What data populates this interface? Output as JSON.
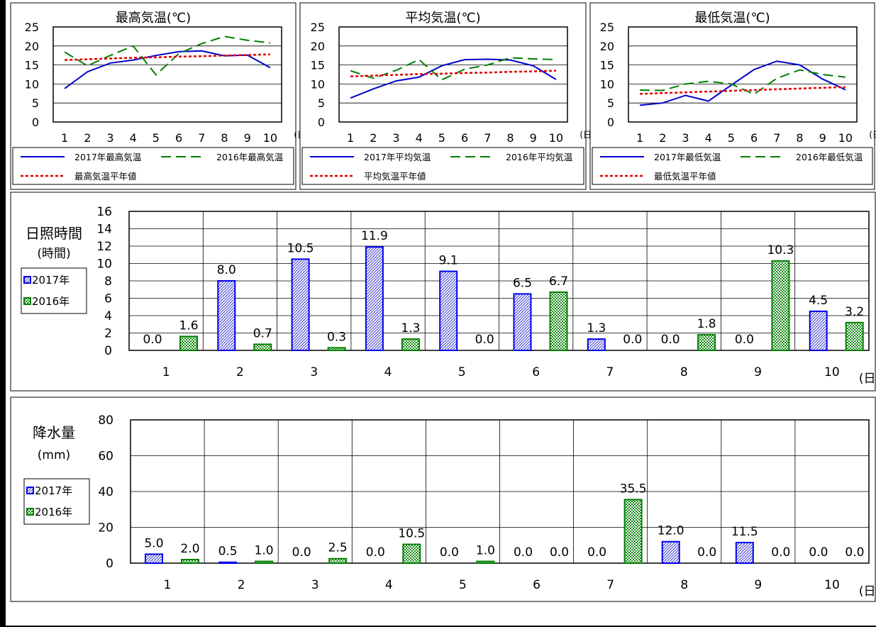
{
  "temperature_panels": [
    {
      "title": "最高気温(℃)",
      "chart_data": {
        "type": "line",
        "title": "最高気温(℃)",
        "x": [
          1,
          2,
          3,
          4,
          5,
          6,
          7,
          8,
          9,
          10
        ],
        "x_unit": "(日)",
        "ylim": [
          0,
          25
        ],
        "yticks": [
          0,
          5,
          10,
          15,
          20,
          25
        ],
        "series": [
          {
            "name": "2017年最高気温",
            "values": [
              8.8,
              13.2,
              15.5,
              16.3,
              17.5,
              18.5,
              18.7,
              17.4,
              17.6,
              14.3
            ],
            "color": "#0000cc",
            "style": "solid"
          },
          {
            "name": "2016年最高気温",
            "values": [
              18.4,
              14.8,
              17.5,
              20.0,
              12.4,
              18.0,
              20.6,
              22.5,
              21.5,
              20.8
            ],
            "color": "#008000",
            "style": "dashed"
          },
          {
            "name": "最高気温平年値",
            "values": [
              16.3,
              16.5,
              16.7,
              16.9,
              17.0,
              17.2,
              17.3,
              17.5,
              17.6,
              17.8
            ],
            "color": "#e00000",
            "style": "dotted"
          }
        ]
      }
    },
    {
      "title": "平均気温(℃)",
      "chart_data": {
        "type": "line",
        "title": "平均気温(℃)",
        "x": [
          1,
          2,
          3,
          4,
          5,
          6,
          7,
          8,
          9,
          10
        ],
        "x_unit": "(日)",
        "ylim": [
          0,
          25
        ],
        "yticks": [
          0,
          5,
          10,
          15,
          20,
          25
        ],
        "series": [
          {
            "name": "2017年平均気温",
            "values": [
              6.3,
              8.7,
              10.8,
              11.8,
              14.8,
              16.4,
              16.5,
              16.3,
              14.8,
              11.2
            ],
            "color": "#0000cc",
            "style": "solid"
          },
          {
            "name": "2016年平均気温",
            "values": [
              13.5,
              11.5,
              13.6,
              16.4,
              11.1,
              13.9,
              15.0,
              16.9,
              16.6,
              16.4
            ],
            "color": "#008000",
            "style": "dashed"
          },
          {
            "name": "平均気温平年値",
            "values": [
              12.0,
              12.2,
              12.4,
              12.6,
              12.7,
              12.9,
              13.0,
              13.2,
              13.3,
              13.5
            ],
            "color": "#e00000",
            "style": "dotted"
          }
        ]
      }
    },
    {
      "title": "最低気温(℃)",
      "chart_data": {
        "type": "line",
        "title": "最低気温(℃)",
        "x": [
          1,
          2,
          3,
          4,
          5,
          6,
          7,
          8,
          9,
          10
        ],
        "x_unit": "(日)",
        "ylim": [
          0,
          25
        ],
        "yticks": [
          0,
          5,
          10,
          15,
          20,
          25
        ],
        "series": [
          {
            "name": "2017年最低気温",
            "values": [
              4.4,
              5.0,
              7.0,
              5.5,
              9.7,
              13.8,
              16.0,
              15.0,
              11.3,
              8.5
            ],
            "color": "#0000cc",
            "style": "solid"
          },
          {
            "name": "2016年最低気温",
            "values": [
              8.4,
              8.3,
              10.0,
              10.7,
              10.0,
              7.3,
              11.5,
              13.7,
              12.5,
              11.8
            ],
            "color": "#008000",
            "style": "dashed"
          },
          {
            "name": "最低気温平年値",
            "values": [
              7.4,
              7.6,
              7.8,
              8.0,
              8.2,
              8.4,
              8.6,
              8.8,
              9.0,
              9.2
            ],
            "color": "#e00000",
            "style": "dotted"
          }
        ]
      }
    }
  ],
  "sunshine": {
    "label_line1": "日照時間",
    "label_line2": "(時間)",
    "chart_data": {
      "type": "bar",
      "categories": [
        "1",
        "2",
        "3",
        "4",
        "5",
        "6",
        "7",
        "8",
        "9",
        "10"
      ],
      "x_unit": "(日)",
      "ylim": [
        0,
        16
      ],
      "yticks": [
        0,
        2,
        4,
        6,
        8,
        10,
        12,
        14,
        16
      ],
      "series": [
        {
          "name": "2017年",
          "values": [
            0.0,
            8.0,
            10.5,
            11.9,
            9.1,
            6.5,
            1.3,
            0.0,
            0.0,
            4.5
          ],
          "labels": [
            "0.0",
            "8.0",
            "10.5",
            "11.9",
            "9.1",
            "6.5",
            "1.3",
            "0.0",
            "0.0",
            "4.5"
          ],
          "color": "#0000ee"
        },
        {
          "name": "2016年",
          "values": [
            1.6,
            0.7,
            0.3,
            1.3,
            0.0,
            6.7,
            0.0,
            1.8,
            10.3,
            3.2
          ],
          "labels": [
            "1.6",
            "0.7",
            "0.3",
            "1.3",
            "0.0",
            "6.7",
            "0.0",
            "1.8",
            "10.3",
            "3.2"
          ],
          "color": "#008000"
        }
      ]
    }
  },
  "precipitation": {
    "label_line1": "降水量",
    "label_line2": "(mm)",
    "chart_data": {
      "type": "bar",
      "categories": [
        "1",
        "2",
        "3",
        "4",
        "5",
        "6",
        "7",
        "8",
        "9",
        "10"
      ],
      "x_unit": "(日)",
      "ylim": [
        0,
        80
      ],
      "yticks": [
        0,
        20,
        40,
        60,
        80
      ],
      "series": [
        {
          "name": "2017年",
          "values": [
            5.0,
            0.5,
            0.0,
            0.0,
            0.0,
            0.0,
            0.0,
            12.0,
            11.5,
            0.0
          ],
          "labels": [
            "5.0",
            "0.5",
            "0.0",
            "0.0",
            "0.0",
            "0.0",
            "0.0",
            "12.0",
            "11.5",
            "0.0"
          ],
          "color": "#0000ee"
        },
        {
          "name": "2016年",
          "values": [
            2.0,
            1.0,
            2.5,
            10.5,
            1.0,
            0.0,
            35.5,
            0.0,
            0.0,
            0.0
          ],
          "labels": [
            "2.0",
            "1.0",
            "2.5",
            "10.5",
            "1.0",
            "0.0",
            "35.5",
            "0.0",
            "0.0",
            "0.0"
          ],
          "color": "#008000"
        }
      ]
    }
  }
}
